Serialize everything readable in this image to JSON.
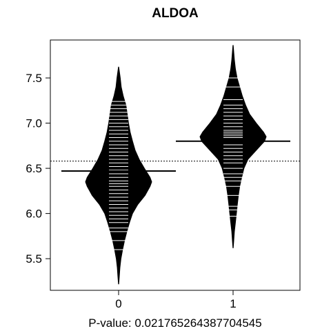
{
  "chart_data": {
    "type": "beanplot",
    "title": "ALDOA",
    "xlabel": "P-value: 0.021765264387704545",
    "ylabel": "",
    "categories": [
      "0",
      "1"
    ],
    "ylim": [
      5.15,
      7.92
    ],
    "yticks": [
      5.5,
      6.0,
      6.5,
      7.0,
      7.5
    ],
    "ytick_labels": [
      "5.5",
      "6.0",
      "6.5",
      "7.0",
      "7.5"
    ],
    "overall_mean": 6.58,
    "series": [
      {
        "name": "0",
        "mean": 6.47,
        "min": 5.22,
        "max": 7.62,
        "density": [
          [
            5.22,
            0.005
          ],
          [
            5.3,
            0.02
          ],
          [
            5.4,
            0.04
          ],
          [
            5.5,
            0.07
          ],
          [
            5.6,
            0.12
          ],
          [
            5.7,
            0.18
          ],
          [
            5.8,
            0.25
          ],
          [
            5.9,
            0.33
          ],
          [
            6.0,
            0.42
          ],
          [
            6.1,
            0.58
          ],
          [
            6.2,
            0.8
          ],
          [
            6.3,
            0.95
          ],
          [
            6.35,
            1.0
          ],
          [
            6.4,
            0.95
          ],
          [
            6.5,
            0.78
          ],
          [
            6.6,
            0.62
          ],
          [
            6.7,
            0.5
          ],
          [
            6.8,
            0.42
          ],
          [
            6.9,
            0.35
          ],
          [
            7.0,
            0.3
          ],
          [
            7.1,
            0.26
          ],
          [
            7.2,
            0.22
          ],
          [
            7.3,
            0.14
          ],
          [
            7.4,
            0.08
          ],
          [
            7.5,
            0.05
          ],
          [
            7.62,
            0.005
          ]
        ],
        "observations": [
          5.6,
          5.7,
          5.8,
          5.84,
          5.9,
          5.94,
          5.98,
          6.02,
          6.06,
          6.1,
          6.14,
          6.18,
          6.22,
          6.26,
          6.3,
          6.33,
          6.36,
          6.4,
          6.44,
          6.48,
          6.52,
          6.56,
          6.6,
          6.64,
          6.68,
          6.72,
          6.76,
          6.8,
          6.84,
          6.88,
          6.92,
          6.96,
          7.0,
          7.04,
          7.08,
          7.12,
          7.16,
          7.2,
          7.24
        ]
      },
      {
        "name": "1",
        "mean": 6.8,
        "min": 5.62,
        "max": 7.86,
        "density": [
          [
            5.62,
            0.005
          ],
          [
            5.7,
            0.02
          ],
          [
            5.8,
            0.04
          ],
          [
            5.9,
            0.07
          ],
          [
            6.0,
            0.1
          ],
          [
            6.1,
            0.13
          ],
          [
            6.2,
            0.16
          ],
          [
            6.3,
            0.2
          ],
          [
            6.4,
            0.26
          ],
          [
            6.5,
            0.33
          ],
          [
            6.6,
            0.45
          ],
          [
            6.7,
            0.7
          ],
          [
            6.8,
            0.95
          ],
          [
            6.85,
            1.0
          ],
          [
            6.9,
            0.92
          ],
          [
            7.0,
            0.7
          ],
          [
            7.1,
            0.5
          ],
          [
            7.2,
            0.38
          ],
          [
            7.3,
            0.28
          ],
          [
            7.4,
            0.2
          ],
          [
            7.5,
            0.12
          ],
          [
            7.6,
            0.07
          ],
          [
            7.7,
            0.04
          ],
          [
            7.86,
            0.005
          ]
        ],
        "observations": [
          5.97,
          6.04,
          6.08,
          6.2,
          6.3,
          6.36,
          6.4,
          6.44,
          6.5,
          6.56,
          6.6,
          6.64,
          6.68,
          6.72,
          6.76,
          6.8,
          6.84,
          6.86,
          6.88,
          6.9,
          6.92,
          6.96,
          7.0,
          7.04,
          7.08,
          7.12,
          7.16,
          7.2,
          7.26,
          7.4,
          7.5
        ]
      }
    ]
  }
}
